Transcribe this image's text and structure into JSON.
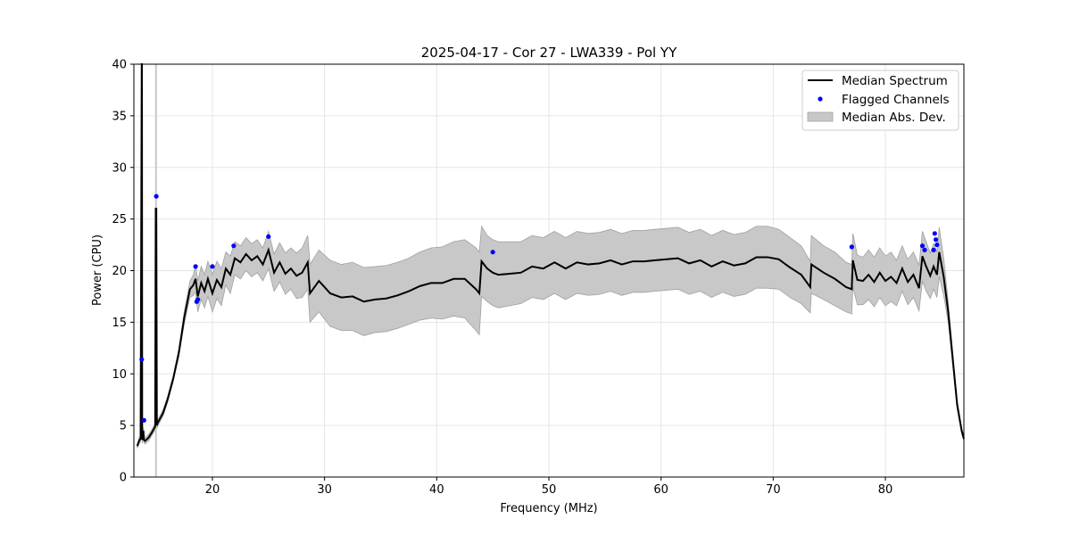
{
  "chart_data": {
    "type": "line",
    "title": "2025-04-17 - Cor 27 - LWA339 - Pol YY",
    "xlabel": "Frequency (MHz)",
    "ylabel": "Power (CPU)",
    "xlim": [
      13.0,
      87.0
    ],
    "ylim": [
      0,
      40
    ],
    "xticks": [
      20,
      30,
      40,
      50,
      60,
      70,
      80
    ],
    "yticks": [
      0,
      5,
      10,
      15,
      20,
      25,
      30,
      35,
      40
    ],
    "grid": true,
    "legend_position": "top-right",
    "legend": [
      {
        "label": "Median Spectrum",
        "kind": "line",
        "color": "#000000"
      },
      {
        "label": "Flagged Channels",
        "kind": "marker",
        "color": "#0000ff"
      },
      {
        "label": "Median Abs. Dev.",
        "kind": "fill",
        "color": "#c8c8c8"
      }
    ],
    "colors": {
      "median": "#000000",
      "flagged": "#0000ff",
      "band_fill": "#c8c8c8",
      "band_edge": "#a0a0a0"
    },
    "median_spectrum": {
      "x": [
        13.3,
        13.5,
        13.6,
        13.7,
        13.72,
        13.74,
        13.76,
        13.8,
        13.85,
        13.9,
        14.0,
        14.3,
        14.6,
        14.9,
        14.95,
        15.0,
        15.05,
        15.1,
        15.3,
        15.6,
        16.0,
        16.5,
        17.0,
        17.5,
        18.0,
        18.3,
        18.5,
        18.7,
        19.0,
        19.3,
        19.6,
        20.0,
        20.4,
        20.8,
        21.2,
        21.6,
        22.0,
        22.5,
        23.0,
        23.5,
        24.0,
        24.5,
        25.0,
        25.5,
        26.0,
        26.5,
        27.0,
        27.5,
        28.0,
        28.5,
        28.7,
        29.5,
        30.5,
        31.5,
        32.5,
        33.5,
        34.5,
        35.5,
        36.5,
        37.5,
        38.5,
        39.5,
        40.5,
        41.5,
        42.5,
        43.5,
        43.8,
        44.0,
        44.5,
        45.0,
        45.5,
        46.5,
        47.5,
        48.5,
        49.5,
        50.5,
        51.5,
        52.5,
        53.5,
        54.5,
        55.5,
        56.5,
        57.5,
        58.5,
        59.5,
        60.5,
        61.5,
        62.5,
        63.5,
        64.5,
        65.5,
        66.5,
        67.5,
        68.5,
        69.5,
        70.5,
        71.5,
        72.5,
        73.3,
        73.4,
        74.5,
        75.5,
        76.5,
        77.0,
        77.1,
        77.5,
        78.0,
        78.5,
        79.0,
        79.5,
        80.0,
        80.5,
        81.0,
        81.5,
        82.0,
        82.5,
        83.0,
        83.3,
        83.6,
        84.0,
        84.3,
        84.6,
        84.8,
        85.2,
        85.6,
        86.0,
        86.4,
        86.8,
        87.0
      ],
      "y": [
        3.0,
        3.6,
        3.7,
        40.0,
        40.0,
        3.8,
        3.6,
        3.9,
        4.5,
        3.6,
        3.5,
        3.8,
        4.3,
        4.9,
        26.0,
        26.0,
        5.0,
        5.2,
        5.6,
        6.2,
        7.5,
        9.5,
        12.0,
        15.5,
        18.2,
        18.6,
        19.2,
        17.5,
        18.8,
        18.0,
        19.2,
        17.8,
        19.1,
        18.4,
        20.2,
        19.6,
        21.2,
        20.8,
        21.6,
        21.0,
        21.4,
        20.6,
        22.0,
        19.8,
        20.8,
        19.7,
        20.2,
        19.5,
        19.8,
        20.8,
        17.8,
        19.0,
        17.8,
        17.4,
        17.5,
        17.0,
        17.2,
        17.3,
        17.6,
        18.0,
        18.5,
        18.8,
        18.8,
        19.2,
        19.2,
        18.2,
        17.8,
        20.9,
        20.2,
        19.8,
        19.6,
        19.7,
        19.8,
        20.4,
        20.2,
        20.8,
        20.2,
        20.8,
        20.6,
        20.7,
        21.0,
        20.6,
        20.9,
        20.9,
        21.0,
        21.1,
        21.2,
        20.7,
        21.0,
        20.4,
        20.9,
        20.5,
        20.7,
        21.3,
        21.3,
        21.1,
        20.3,
        19.6,
        18.4,
        20.6,
        19.8,
        19.2,
        18.4,
        18.2,
        21.0,
        19.1,
        19.0,
        19.6,
        18.9,
        19.8,
        19.0,
        19.4,
        18.8,
        20.2,
        18.9,
        19.6,
        18.3,
        21.4,
        20.5,
        19.5,
        20.4,
        19.6,
        21.8,
        19.4,
        16.0,
        11.5,
        7.0,
        4.5,
        3.7
      ],
      "mad": [
        0.2,
        0.3,
        0.3,
        0.3,
        0.3,
        0.3,
        0.3,
        0.3,
        0.3,
        0.3,
        0.3,
        0.3,
        0.3,
        0.3,
        0.3,
        0.3,
        0.3,
        0.3,
        0.3,
        0.3,
        0.3,
        0.3,
        0.4,
        0.6,
        0.8,
        1.0,
        1.3,
        1.5,
        1.6,
        1.6,
        1.7,
        1.8,
        1.8,
        1.8,
        1.6,
        1.8,
        1.6,
        1.6,
        1.6,
        1.6,
        1.6,
        1.6,
        1.8,
        1.8,
        1.9,
        2.0,
        2.0,
        2.2,
        2.4,
        2.6,
        2.8,
        3.0,
        3.2,
        3.2,
        3.3,
        3.3,
        3.2,
        3.2,
        3.2,
        3.2,
        3.3,
        3.4,
        3.5,
        3.6,
        3.8,
        4.0,
        4.0,
        3.4,
        3.2,
        3.2,
        3.2,
        3.1,
        3.0,
        3.0,
        3.0,
        3.0,
        3.0,
        3.0,
        3.0,
        3.0,
        3.0,
        3.0,
        3.0,
        3.0,
        3.0,
        3.0,
        3.0,
        3.0,
        3.0,
        3.0,
        3.0,
        3.0,
        3.0,
        3.0,
        3.0,
        2.9,
        2.9,
        2.8,
        2.5,
        2.8,
        2.6,
        2.6,
        2.4,
        2.4,
        2.6,
        2.4,
        2.3,
        2.4,
        2.4,
        2.4,
        2.4,
        2.4,
        2.2,
        2.2,
        2.2,
        2.2,
        2.2,
        2.4,
        2.4,
        2.2,
        2.2,
        2.2,
        2.4,
        1.8,
        1.0,
        0.6,
        0.4,
        0.3,
        0.2
      ]
    },
    "mad_spike": {
      "x": 14.97,
      "y": [
        0,
        40
      ]
    },
    "flagged_channels": {
      "x": [
        13.7,
        13.9,
        15.0,
        18.5,
        18.6,
        18.7,
        20.0,
        21.9,
        25.0,
        45.0,
        77.0,
        83.3,
        83.5,
        84.3,
        84.4,
        84.5,
        84.6
      ],
      "y": [
        11.4,
        5.5,
        27.2,
        20.4,
        17.0,
        17.2,
        20.4,
        22.4,
        23.3,
        21.8,
        22.3,
        22.4,
        22.0,
        22.0,
        23.6,
        23.0,
        22.5
      ]
    }
  }
}
